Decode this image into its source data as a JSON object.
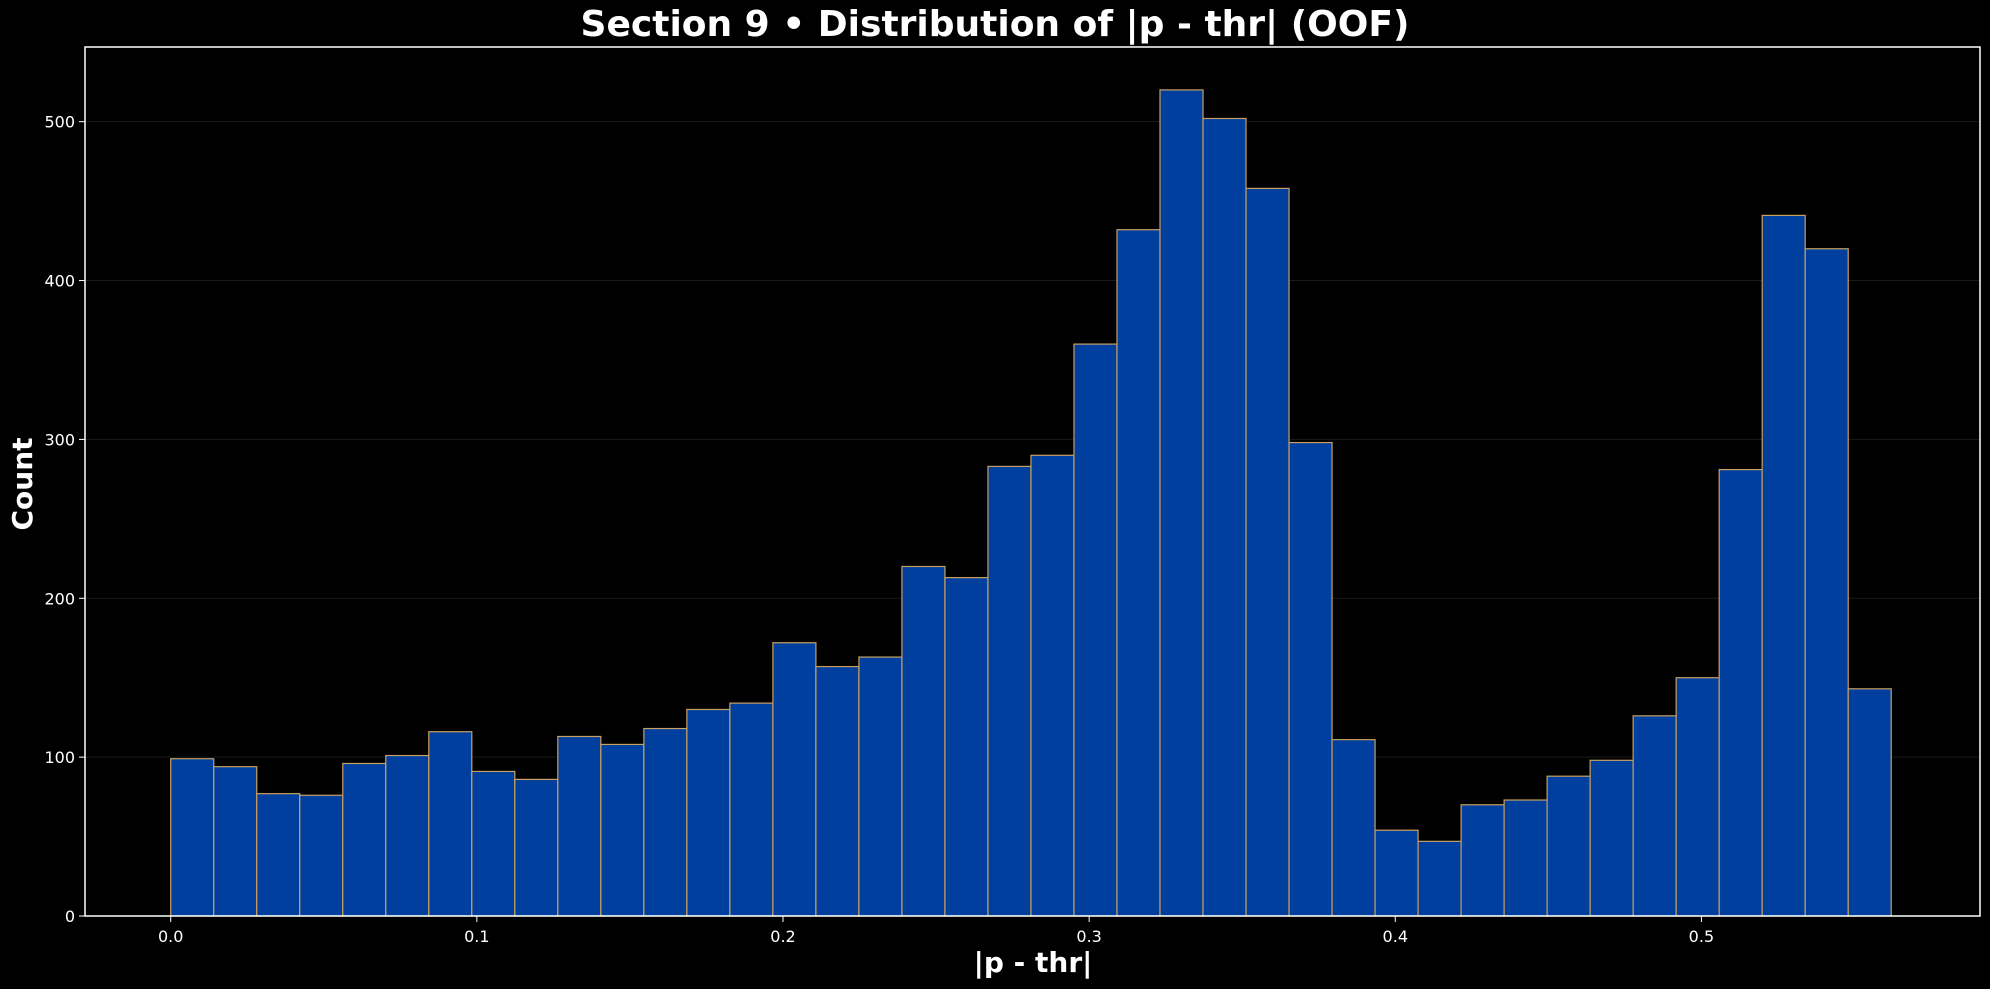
{
  "chart_data": {
    "type": "bar",
    "title": "Section 9 • Distribution of |p - thr| (OOF)",
    "xlabel": "|p - thr|",
    "ylabel": "Count",
    "xlim": [
      -0.028,
      0.591
    ],
    "ylim": [
      0,
      547
    ],
    "xticks": [
      0.0,
      0.1,
      0.2,
      0.3,
      0.4,
      0.5
    ],
    "xtick_labels": [
      "0.0",
      "0.1",
      "0.2",
      "0.3",
      "0.4",
      "0.5"
    ],
    "yticks": [
      0,
      100,
      200,
      300,
      400,
      500
    ],
    "ytick_labels": [
      "0",
      "100",
      "200",
      "300",
      "400",
      "500"
    ],
    "grid": true,
    "colors": {
      "background": "#000000",
      "bar_fill": "#003f9e",
      "bar_edge": "#c8a060",
      "axis": "#ffffff",
      "text": "#ffffff",
      "grid": "#1a1a1a"
    },
    "bin_edges": [
      0.0,
      0.01405,
      0.0281,
      0.04215,
      0.0562,
      0.07025,
      0.0843,
      0.09835,
      0.1124,
      0.12645,
      0.1405,
      0.15455,
      0.1686,
      0.18265,
      0.1967,
      0.21075,
      0.2248,
      0.23885,
      0.2529,
      0.26695,
      0.281,
      0.29505,
      0.3091,
      0.32315,
      0.3372,
      0.35125,
      0.3653,
      0.37935,
      0.3934,
      0.40745,
      0.4215,
      0.43555,
      0.4496,
      0.46365,
      0.4777,
      0.49175,
      0.5058,
      0.51985,
      0.5339,
      0.54795,
      0.562
    ],
    "values": [
      99,
      94,
      77,
      76,
      96,
      101,
      116,
      91,
      86,
      113,
      108,
      118,
      130,
      134,
      172,
      157,
      163,
      220,
      213,
      283,
      290,
      360,
      432,
      520,
      502,
      458,
      298,
      111,
      54,
      47,
      70,
      73,
      88,
      98,
      126,
      150,
      281,
      441,
      420,
      143
    ]
  }
}
